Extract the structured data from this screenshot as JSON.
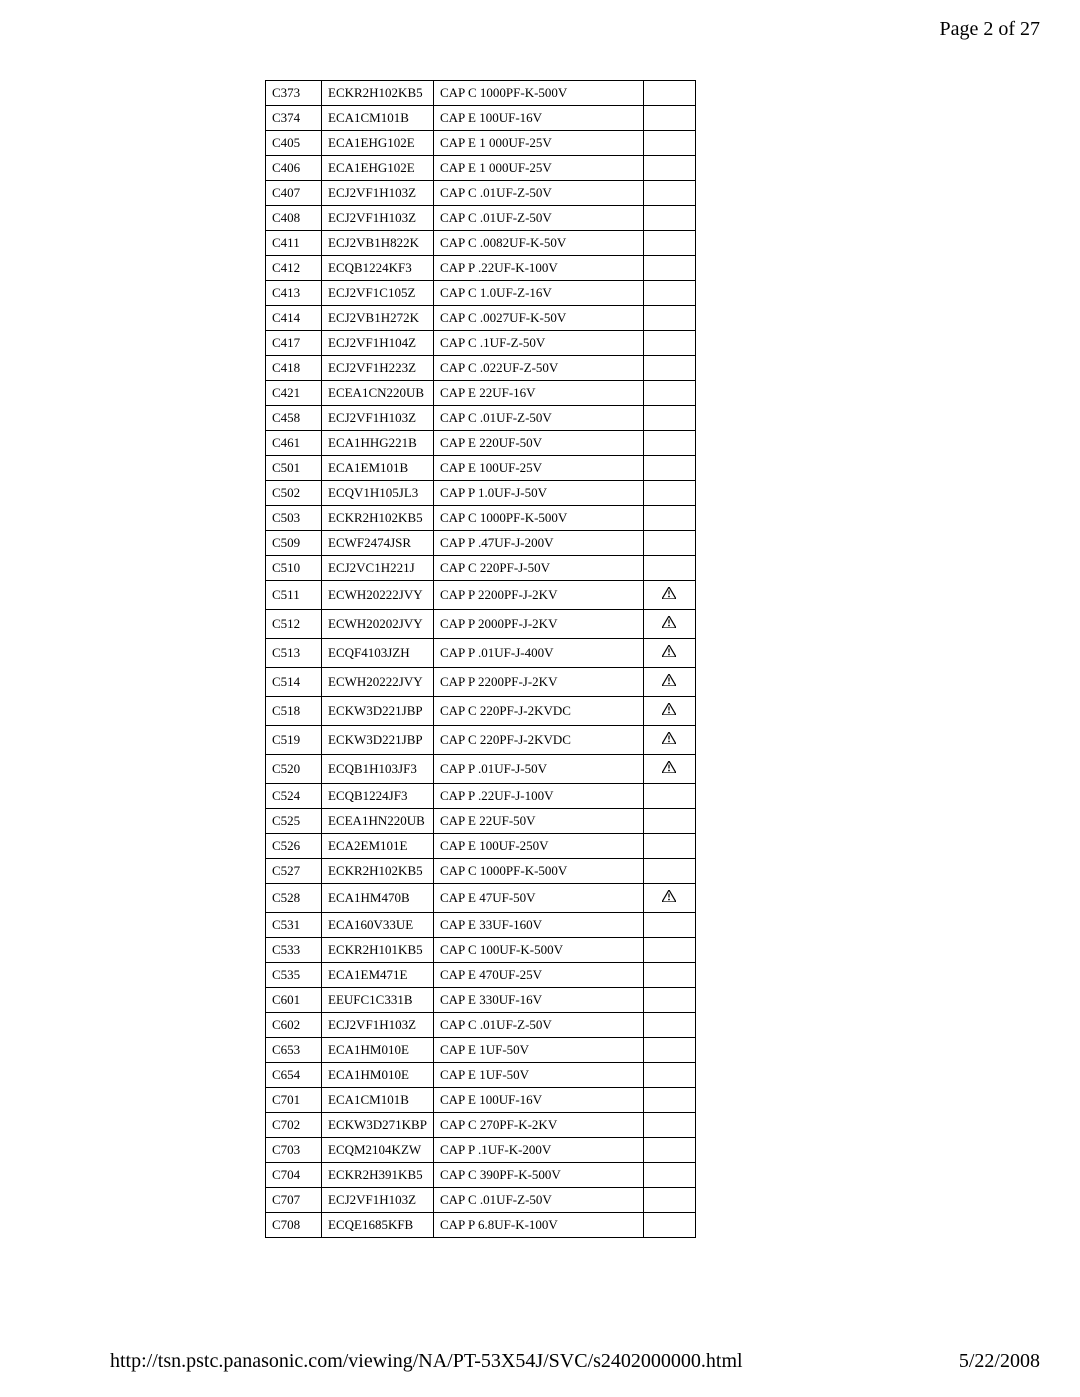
{
  "header": {
    "page_indicator": "Page 2 of 27"
  },
  "footer": {
    "url": "http://tsn.pstc.panasonic.com/viewing/NA/PT-53X54J/SVC/s2402000000.html",
    "date": "5/22/2008"
  },
  "table": {
    "rows": [
      {
        "ref": "C373",
        "part": "ECKR2H102KB5",
        "desc": "CAP C 1000PF-K-500V",
        "warn": false
      },
      {
        "ref": "C374",
        "part": "ECA1CM101B",
        "desc": "CAP E 100UF-16V",
        "warn": false
      },
      {
        "ref": "C405",
        "part": "ECA1EHG102E",
        "desc": "CAP E 1 000UF-25V",
        "warn": false
      },
      {
        "ref": "C406",
        "part": "ECA1EHG102E",
        "desc": "CAP E 1 000UF-25V",
        "warn": false
      },
      {
        "ref": "C407",
        "part": "ECJ2VF1H103Z",
        "desc": "CAP C .01UF-Z-50V",
        "warn": false
      },
      {
        "ref": "C408",
        "part": "ECJ2VF1H103Z",
        "desc": "CAP C .01UF-Z-50V",
        "warn": false
      },
      {
        "ref": "C411",
        "part": "ECJ2VB1H822K",
        "desc": "CAP C .0082UF-K-50V",
        "warn": false
      },
      {
        "ref": "C412",
        "part": "ECQB1224KF3",
        "desc": "CAP P .22UF-K-100V",
        "warn": false
      },
      {
        "ref": "C413",
        "part": "ECJ2VF1C105Z",
        "desc": "CAP C 1.0UF-Z-16V",
        "warn": false
      },
      {
        "ref": "C414",
        "part": "ECJ2VB1H272K",
        "desc": "CAP C .0027UF-K-50V",
        "warn": false
      },
      {
        "ref": "C417",
        "part": "ECJ2VF1H104Z",
        "desc": "CAP C .1UF-Z-50V",
        "warn": false
      },
      {
        "ref": "C418",
        "part": "ECJ2VF1H223Z",
        "desc": "CAP C .022UF-Z-50V",
        "warn": false
      },
      {
        "ref": "C421",
        "part": "ECEA1CN220UB",
        "desc": "CAP E 22UF-16V",
        "warn": false
      },
      {
        "ref": "C458",
        "part": "ECJ2VF1H103Z",
        "desc": "CAP C .01UF-Z-50V",
        "warn": false
      },
      {
        "ref": "C461",
        "part": "ECA1HHG221B",
        "desc": "CAP E 220UF-50V",
        "warn": false
      },
      {
        "ref": "C501",
        "part": "ECA1EM101B",
        "desc": "CAP E 100UF-25V",
        "warn": false
      },
      {
        "ref": "C502",
        "part": "ECQV1H105JL3",
        "desc": "CAP P 1.0UF-J-50V",
        "warn": false
      },
      {
        "ref": "C503",
        "part": "ECKR2H102KB5",
        "desc": "CAP C 1000PF-K-500V",
        "warn": false
      },
      {
        "ref": "C509",
        "part": "ECWF2474JSR",
        "desc": "CAP P .47UF-J-200V",
        "warn": false
      },
      {
        "ref": "C510",
        "part": "ECJ2VC1H221J",
        "desc": "CAP C 220PF-J-50V",
        "warn": false
      },
      {
        "ref": "C511",
        "part": "ECWH20222JVY",
        "desc": "CAP P 2200PF-J-2KV",
        "warn": true
      },
      {
        "ref": "C512",
        "part": "ECWH20202JVY",
        "desc": "CAP P 2000PF-J-2KV",
        "warn": true
      },
      {
        "ref": "C513",
        "part": "ECQF4103JZH",
        "desc": "CAP P .01UF-J-400V",
        "warn": true
      },
      {
        "ref": "C514",
        "part": "ECWH20222JVY",
        "desc": "CAP P 2200PF-J-2KV",
        "warn": true
      },
      {
        "ref": "C518",
        "part": "ECKW3D221JBP",
        "desc": "CAP C 220PF-J-2KVDC",
        "warn": true
      },
      {
        "ref": "C519",
        "part": "ECKW3D221JBP",
        "desc": "CAP C 220PF-J-2KVDC",
        "warn": true
      },
      {
        "ref": "C520",
        "part": "ECQB1H103JF3",
        "desc": "CAP P .01UF-J-50V",
        "warn": true
      },
      {
        "ref": "C524",
        "part": "ECQB1224JF3",
        "desc": "CAP P .22UF-J-100V",
        "warn": false
      },
      {
        "ref": "C525",
        "part": "ECEA1HN220UB",
        "desc": "CAP E 22UF-50V",
        "warn": false
      },
      {
        "ref": "C526",
        "part": "ECA2EM101E",
        "desc": "CAP E 100UF-250V",
        "warn": false
      },
      {
        "ref": "C527",
        "part": "ECKR2H102KB5",
        "desc": "CAP C 1000PF-K-500V",
        "warn": false
      },
      {
        "ref": "C528",
        "part": "ECA1HM470B",
        "desc": "CAP E 47UF-50V",
        "warn": true
      },
      {
        "ref": "C531",
        "part": "ECA160V33UE",
        "desc": "CAP E 33UF-160V",
        "warn": false
      },
      {
        "ref": "C533",
        "part": "ECKR2H101KB5",
        "desc": "CAP C 100UF-K-500V",
        "warn": false
      },
      {
        "ref": "C535",
        "part": "ECA1EM471E",
        "desc": "CAP E 470UF-25V",
        "warn": false
      },
      {
        "ref": "C601",
        "part": "EEUFC1C331B",
        "desc": "CAP E 330UF-16V",
        "warn": false
      },
      {
        "ref": "C602",
        "part": "ECJ2VF1H103Z",
        "desc": "CAP C .01UF-Z-50V",
        "warn": false
      },
      {
        "ref": "C653",
        "part": "ECA1HM010E",
        "desc": "CAP E 1UF-50V",
        "warn": false
      },
      {
        "ref": "C654",
        "part": "ECA1HM010E",
        "desc": "CAP E 1UF-50V",
        "warn": false
      },
      {
        "ref": "C701",
        "part": "ECA1CM101B",
        "desc": "CAP E 100UF-16V",
        "warn": false
      },
      {
        "ref": "C702",
        "part": "ECKW3D271KBP",
        "desc": "CAP C 270PF-K-2KV",
        "warn": false
      },
      {
        "ref": "C703",
        "part": "ECQM2104KZW",
        "desc": "CAP P .1UF-K-200V",
        "warn": false
      },
      {
        "ref": "C704",
        "part": "ECKR2H391KB5",
        "desc": "CAP C 390PF-K-500V",
        "warn": false
      },
      {
        "ref": "C707",
        "part": "ECJ2VF1H103Z",
        "desc": "CAP C .01UF-Z-50V",
        "warn": false
      },
      {
        "ref": "C708",
        "part": "ECQE1685KFB",
        "desc": "CAP P 6.8UF-K-100V",
        "warn": false
      }
    ]
  }
}
